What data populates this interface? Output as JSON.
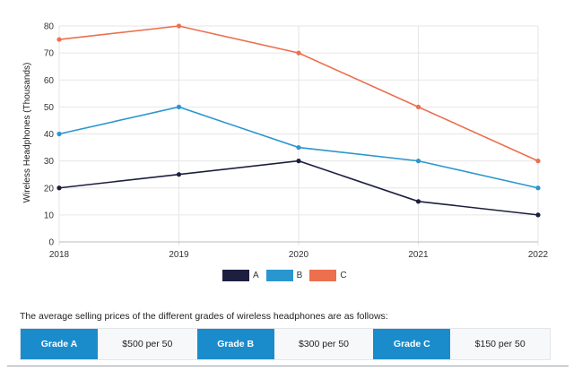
{
  "chart_data": {
    "type": "line",
    "x": [
      "2018",
      "2019",
      "2020",
      "2021",
      "2022"
    ],
    "series": [
      {
        "name": "A",
        "values": [
          20,
          25,
          30,
          15,
          10
        ],
        "color": "#1c1f3f"
      },
      {
        "name": "B",
        "values": [
          40,
          50,
          35,
          30,
          20
        ],
        "color": "#2a96cf"
      },
      {
        "name": "C",
        "values": [
          75,
          80,
          70,
          50,
          30
        ],
        "color": "#ec6f4e"
      }
    ],
    "ylabel": "Wireless Headphones (Thousands)",
    "xlabel": "",
    "ylim": [
      0,
      80
    ],
    "yticks": [
      "0",
      "10",
      "20",
      "30",
      "40",
      "50",
      "60",
      "70",
      "80"
    ],
    "grid": true,
    "legend_position": "bottom"
  },
  "caption": "The average selling prices of the different grades of wireless headphones are as follows:",
  "prices": [
    {
      "grade": "Grade A",
      "price": "$500 per 50"
    },
    {
      "grade": "Grade B",
      "price": "$300 per 50"
    },
    {
      "grade": "Grade C",
      "price": "$150 per 50"
    }
  ],
  "colors": {
    "grade_cell": "#1b8ccb",
    "grid": "#e6e6e6"
  }
}
